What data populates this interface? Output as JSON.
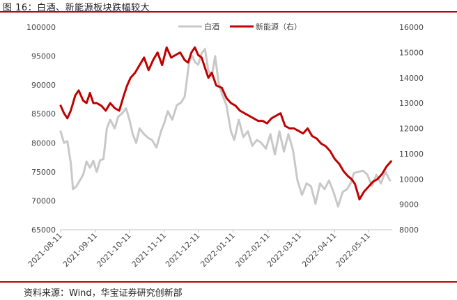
{
  "figure": {
    "title": "图 16：白酒、新能源板块跌幅较大",
    "source": "资料来源：Wind，华宝证券研究创新部"
  },
  "colors": {
    "series1": "#c8c8c8",
    "series2": "#c00000",
    "rule": "#c00000"
  },
  "chart_data": {
    "type": "line",
    "title": "图 16：白酒、新能源板块跌幅较大",
    "grid": false,
    "legend_position": "top-center",
    "xlim": [
      "2021-08-11",
      "2022-06-01"
    ],
    "x_ticks": [
      "2021-08-11",
      "2021-09-11",
      "2021-10-11",
      "2021-11-11",
      "2021-12-11",
      "2022-01-11",
      "2022-02-11",
      "2022-03-11",
      "2022-04-11",
      "2022-05-11"
    ],
    "ylim_left": [
      65000,
      100000
    ],
    "yticks_left": [
      "100000",
      "95000",
      "90000",
      "85000",
      "80000",
      "75000",
      "70000",
      "65000"
    ],
    "ylim_right": [
      8000,
      16000
    ],
    "yticks_right": [
      "16000",
      "15000",
      "14000",
      "13000",
      "12000",
      "11000",
      "10000",
      "9000",
      "8000"
    ],
    "series": [
      {
        "name": "白酒",
        "axis": "left",
        "x": [
          "2021-08-11",
          "2021-08-14",
          "2021-08-17",
          "2021-08-20",
          "2021-08-22",
          "2021-08-25",
          "2021-08-28",
          "2021-08-31",
          "2021-09-03",
          "2021-09-06",
          "2021-09-09",
          "2021-09-12",
          "2021-09-15",
          "2021-09-18",
          "2021-09-21",
          "2021-09-24",
          "2021-09-28",
          "2021-10-01",
          "2021-10-05",
          "2021-10-08",
          "2021-10-11",
          "2021-10-14",
          "2021-10-17",
          "2021-10-20",
          "2021-10-24",
          "2021-10-28",
          "2021-10-31",
          "2021-11-04",
          "2021-11-08",
          "2021-11-11",
          "2021-11-14",
          "2021-11-18",
          "2021-11-22",
          "2021-11-26",
          "2021-11-29",
          "2021-12-03",
          "2021-12-06",
          "2021-12-08",
          "2021-12-11",
          "2021-12-14",
          "2021-12-17",
          "2021-12-20",
          "2021-12-23",
          "2021-12-26",
          "2021-12-29",
          "2022-01-01",
          "2022-01-05",
          "2022-01-09",
          "2022-01-12",
          "2022-01-16",
          "2022-01-20",
          "2022-01-24",
          "2022-01-28",
          "2022-02-01",
          "2022-02-05",
          "2022-02-09",
          "2022-02-13",
          "2022-02-17",
          "2022-02-21",
          "2022-02-25",
          "2022-03-01",
          "2022-03-05",
          "2022-03-09",
          "2022-03-13",
          "2022-03-17",
          "2022-03-21",
          "2022-03-25",
          "2022-03-29",
          "2022-04-02",
          "2022-04-06",
          "2022-04-10",
          "2022-04-14",
          "2022-04-18",
          "2022-04-22",
          "2022-04-25",
          "2022-04-28",
          "2022-05-02",
          "2022-05-06",
          "2022-05-10",
          "2022-05-14",
          "2022-05-18",
          "2022-05-22",
          "2022-05-26",
          "2022-05-30"
        ],
        "values": [
          82000,
          80000,
          80300,
          76500,
          72000,
          72500,
          73500,
          74500,
          76800,
          75700,
          76900,
          75000,
          77000,
          77200,
          82500,
          84000,
          82500,
          84500,
          85200,
          86000,
          84000,
          81500,
          80000,
          82500,
          81500,
          80800,
          80500,
          79200,
          82000,
          83500,
          85500,
          84000,
          86500,
          87000,
          88000,
          94000,
          95000,
          94000,
          93500,
          95500,
          96200,
          92500,
          91500,
          95000,
          90500,
          88500,
          86500,
          82000,
          80500,
          84000,
          81000,
          82000,
          79500,
          80500,
          80000,
          79000,
          81500,
          78000,
          82000,
          78500,
          81500,
          78800,
          73500,
          71000,
          73000,
          72500,
          69500,
          73000,
          72000,
          73500,
          71500,
          69000,
          71500,
          72000,
          73000,
          74800,
          75000,
          75200,
          74500,
          72500,
          74500,
          73000,
          75000,
          73500
        ]
      },
      {
        "name": "新能源（右）",
        "axis": "right",
        "x": [
          "2021-08-11",
          "2021-08-14",
          "2021-08-17",
          "2021-08-20",
          "2021-08-24",
          "2021-08-27",
          "2021-08-31",
          "2021-09-03",
          "2021-09-06",
          "2021-09-09",
          "2021-09-12",
          "2021-09-16",
          "2021-09-20",
          "2021-09-24",
          "2021-09-28",
          "2021-10-02",
          "2021-10-06",
          "2021-10-09",
          "2021-10-12",
          "2021-10-16",
          "2021-10-20",
          "2021-10-24",
          "2021-10-28",
          "2021-11-01",
          "2021-11-05",
          "2021-11-09",
          "2021-11-13",
          "2021-11-17",
          "2021-11-21",
          "2021-11-25",
          "2021-11-29",
          "2021-12-02",
          "2021-12-05",
          "2021-12-08",
          "2021-12-11",
          "2021-12-14",
          "2021-12-17",
          "2021-12-20",
          "2021-12-23",
          "2021-12-27",
          "2022-01-01",
          "2022-01-05",
          "2022-01-09",
          "2022-01-13",
          "2022-01-17",
          "2022-01-21",
          "2022-01-25",
          "2022-01-29",
          "2022-02-02",
          "2022-02-06",
          "2022-02-10",
          "2022-02-14",
          "2022-02-18",
          "2022-02-22",
          "2022-02-26",
          "2022-03-02",
          "2022-03-06",
          "2022-03-10",
          "2022-03-14",
          "2022-03-18",
          "2022-03-22",
          "2022-03-26",
          "2022-03-30",
          "2022-04-03",
          "2022-04-07",
          "2022-04-11",
          "2022-04-15",
          "2022-04-19",
          "2022-04-23",
          "2022-04-26",
          "2022-04-29",
          "2022-05-03",
          "2022-05-07",
          "2022-05-11",
          "2022-05-15",
          "2022-05-19",
          "2022-05-23",
          "2022-05-27",
          "2022-05-31"
        ],
        "values": [
          12900,
          12600,
          12400,
          12700,
          13300,
          13500,
          13100,
          13000,
          13400,
          13000,
          13000,
          12900,
          12700,
          13000,
          12800,
          12700,
          13300,
          13700,
          14000,
          14200,
          14500,
          14800,
          14300,
          14700,
          15000,
          14500,
          15200,
          14800,
          14900,
          15000,
          14700,
          14600,
          15000,
          15200,
          14900,
          14800,
          14400,
          14000,
          14200,
          13700,
          13600,
          13200,
          13000,
          12900,
          12700,
          12600,
          12500,
          12400,
          12300,
          12300,
          12200,
          12400,
          12500,
          12600,
          12100,
          12000,
          12000,
          11900,
          11800,
          12000,
          11700,
          11600,
          11400,
          11300,
          11100,
          10800,
          10600,
          10300,
          10100,
          10000,
          9800,
          9200,
          9500,
          9700,
          9900,
          10000,
          10200,
          10500,
          10700
        ]
      }
    ]
  }
}
